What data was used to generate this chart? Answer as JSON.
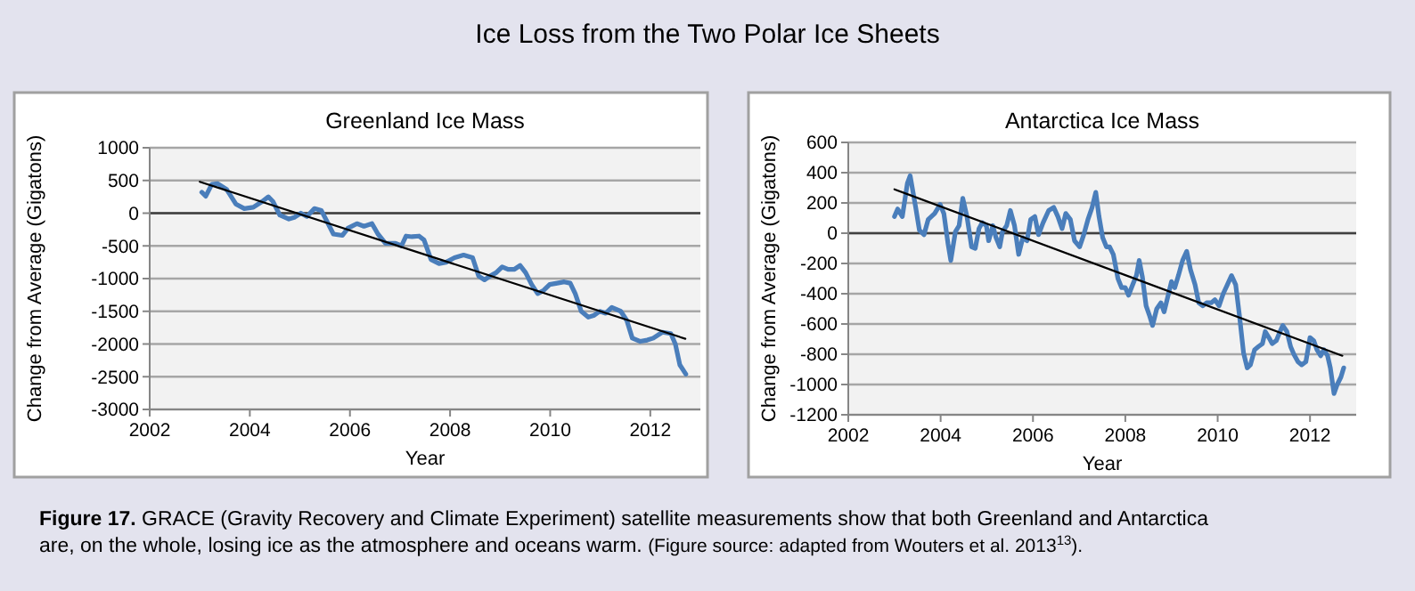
{
  "chart_data": [
    {
      "type": "other",
      "title": "Ice Loss from the Two Polar Ice Sheets",
      "annotations": [
        "Figure 17. GRACE (Gravity Recovery and Climate Experiment) satellite measurements show that both Greenland and Antarctica are, on the whole, losing ice as the atmosphere and oceans warm. (Figure source: adapted from Wouters et al. 2013$^{13}$)."
      ]
    },
    {
      "type": "line",
      "title": "Greenland Ice Mass",
      "xlabel": "Year",
      "ylabel": "Change from Average (Gigatons)",
      "xlim": [
        2002,
        2013
      ],
      "xticks": [
        2002,
        2004,
        2006,
        2008,
        2010,
        2012
      ],
      "ylim": [
        -3000,
        1000
      ],
      "yticks": [
        -3000,
        -2500,
        -2000,
        -1500,
        -1000,
        -500,
        0,
        500,
        1000
      ],
      "grid": "y",
      "marker": "none",
      "ref_lines": [
        {
          "axis": "y",
          "value": 0,
          "color": "#404040"
        }
      ],
      "series": [
        {
          "color": "#4a7ebb",
          "x": [
            2003.04,
            2003.12,
            2003.24,
            2003.36,
            2003.54,
            2003.72,
            2003.89,
            2004.07,
            2004.25,
            2004.37,
            2004.46,
            2004.6,
            2004.78,
            2004.9,
            2005.02,
            2005.14,
            2005.29,
            2005.43,
            2005.55,
            2005.67,
            2005.85,
            2005.96,
            2006.14,
            2006.28,
            2006.44,
            2006.56,
            2006.71,
            2006.91,
            2007.03,
            2007.12,
            2007.24,
            2007.38,
            2007.48,
            2007.62,
            2007.78,
            2007.92,
            2008.09,
            2008.27,
            2008.45,
            2008.57,
            2008.69,
            2008.8,
            2008.92,
            2009.04,
            2009.16,
            2009.28,
            2009.4,
            2009.51,
            2009.63,
            2009.75,
            2009.87,
            2009.99,
            2010.14,
            2010.28,
            2010.4,
            2010.5,
            2010.62,
            2010.76,
            2010.88,
            2010.99,
            2011.11,
            2011.23,
            2011.41,
            2011.53,
            2011.64,
            2011.8,
            2011.94,
            2012.06,
            2012.24,
            2012.41,
            2012.5,
            2012.59,
            2012.71
          ],
          "values": [
            320,
            260,
            440,
            450,
            360,
            140,
            70,
            90,
            180,
            250,
            180,
            -30,
            -90,
            -60,
            0,
            -50,
            70,
            40,
            -140,
            -320,
            -340,
            -230,
            -160,
            -200,
            -160,
            -320,
            -460,
            -460,
            -500,
            -350,
            -360,
            -350,
            -410,
            -710,
            -770,
            -750,
            -680,
            -640,
            -680,
            -960,
            -1020,
            -960,
            -910,
            -820,
            -860,
            -860,
            -800,
            -910,
            -1090,
            -1230,
            -1180,
            -1090,
            -1070,
            -1050,
            -1070,
            -1230,
            -1500,
            -1590,
            -1560,
            -1500,
            -1530,
            -1440,
            -1500,
            -1640,
            -1910,
            -1960,
            -1940,
            -1910,
            -1820,
            -1840,
            -2000,
            -2320,
            -2460
          ]
        },
        {
          "type": "line",
          "color": "#000000",
          "x": [
            2003.0,
            2012.7
          ],
          "values": [
            480,
            -1920
          ]
        }
      ]
    },
    {
      "type": "line",
      "title": "Antarctica Ice Mass",
      "xlabel": "Year",
      "ylabel": "Change from Average (Gigatons)",
      "xlim": [
        2002,
        2013
      ],
      "xticks": [
        2002,
        2004,
        2006,
        2008,
        2010,
        2012
      ],
      "ylim": [
        -1200,
        600
      ],
      "yticks": [
        -1200,
        -1000,
        -800,
        -600,
        -400,
        -200,
        0,
        200,
        400,
        600
      ],
      "grid": "y",
      "marker": "none",
      "ref_lines": [
        {
          "axis": "y",
          "value": 0,
          "color": "#404040"
        }
      ],
      "series": [
        {
          "color": "#4a7ebb",
          "x": [
            2003.0,
            2003.07,
            2003.17,
            2003.28,
            2003.34,
            2003.46,
            2003.54,
            2003.64,
            2003.73,
            2003.87,
            2003.99,
            2004.07,
            2004.16,
            2004.22,
            2004.32,
            2004.4,
            2004.48,
            2004.57,
            2004.67,
            2004.75,
            2004.83,
            2004.9,
            2004.99,
            2005.04,
            2005.13,
            2005.2,
            2005.28,
            2005.34,
            2005.43,
            2005.51,
            2005.6,
            2005.69,
            2005.78,
            2005.87,
            2005.95,
            2006.04,
            2006.12,
            2006.22,
            2006.34,
            2006.45,
            2006.54,
            2006.63,
            2006.71,
            2006.81,
            2006.9,
            2007.01,
            2007.1,
            2007.19,
            2007.28,
            2007.36,
            2007.43,
            2007.51,
            2007.59,
            2007.66,
            2007.74,
            2007.84,
            2007.92,
            2008.0,
            2008.07,
            2008.16,
            2008.24,
            2008.3,
            2008.37,
            2008.45,
            2008.53,
            2008.59,
            2008.68,
            2008.77,
            2008.84,
            2008.92,
            2009.0,
            2009.07,
            2009.15,
            2009.24,
            2009.33,
            2009.41,
            2009.51,
            2009.59,
            2009.68,
            2009.76,
            2009.86,
            2009.94,
            2010.03,
            2010.12,
            2010.21,
            2010.3,
            2010.39,
            2010.47,
            2010.56,
            2010.64,
            2010.71,
            2010.8,
            2010.88,
            2010.97,
            2011.03,
            2011.11,
            2011.18,
            2011.27,
            2011.35,
            2011.41,
            2011.5,
            2011.58,
            2011.65,
            2011.74,
            2011.82,
            2011.91,
            2012.0,
            2012.08,
            2012.15,
            2012.23,
            2012.3,
            2012.38,
            2012.44,
            2012.52,
            2012.59,
            2012.67,
            2012.73
          ],
          "values": [
            110,
            160,
            110,
            330,
            380,
            170,
            20,
            -10,
            90,
            130,
            190,
            130,
            -70,
            -180,
            10,
            50,
            230,
            110,
            -90,
            -100,
            30,
            70,
            50,
            -50,
            50,
            -30,
            -90,
            10,
            50,
            150,
            50,
            -140,
            -30,
            -50,
            90,
            110,
            -10,
            70,
            150,
            170,
            110,
            30,
            130,
            90,
            -50,
            -90,
            -10,
            90,
            170,
            270,
            110,
            -30,
            -90,
            -90,
            -140,
            -300,
            -360,
            -360,
            -410,
            -340,
            -280,
            -180,
            -290,
            -480,
            -550,
            -610,
            -500,
            -460,
            -520,
            -420,
            -320,
            -360,
            -280,
            -180,
            -120,
            -240,
            -340,
            -460,
            -480,
            -460,
            -460,
            -440,
            -480,
            -400,
            -340,
            -280,
            -340,
            -540,
            -790,
            -890,
            -870,
            -770,
            -750,
            -730,
            -650,
            -690,
            -730,
            -710,
            -650,
            -610,
            -650,
            -750,
            -800,
            -850,
            -870,
            -850,
            -690,
            -710,
            -770,
            -810,
            -770,
            -810,
            -890,
            -1060,
            -1000,
            -950,
            -890
          ]
        },
        {
          "type": "line",
          "color": "#000000",
          "x": [
            2003.0,
            2012.7
          ],
          "values": [
            290,
            -810
          ]
        }
      ]
    }
  ]
}
